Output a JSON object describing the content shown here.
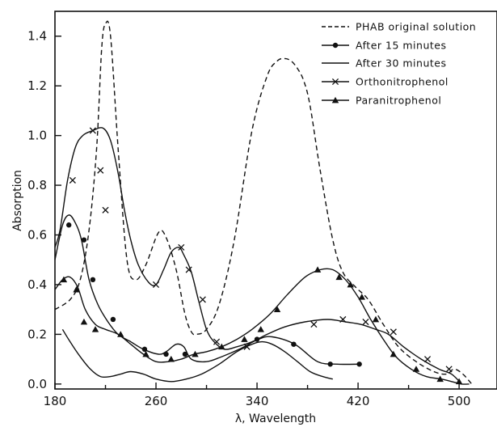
{
  "chart_data": {
    "type": "line",
    "title": "",
    "xlabel": "λ, Wavelength",
    "ylabel": "Absorption",
    "xlim": [
      180,
      530
    ],
    "ylim": [
      -0.02,
      1.5
    ],
    "xticks": [
      180,
      260,
      340,
      420,
      500
    ],
    "yticks": [
      0.0,
      0.2,
      0.4,
      0.6,
      0.8,
      1.0,
      1.2,
      1.4
    ],
    "ytick_labels": [
      "0.0",
      "0.2",
      "0.4",
      "0.6",
      "0.8",
      "1.0",
      "1.2",
      "1.4"
    ],
    "xtick_labels": [
      "180",
      "260",
      "340",
      "420",
      "500"
    ],
    "grid": false,
    "legend_position": "top-right",
    "series": [
      {
        "name": "PHAB original solution",
        "style": "dashed",
        "marker": "none",
        "x": [
          180,
          192,
          200,
          207,
          213,
          217,
          220,
          224,
          230,
          237,
          244,
          252,
          262,
          268,
          276,
          283,
          288,
          292,
          300,
          310,
          322,
          336,
          348,
          356,
          362,
          367,
          372,
          377,
          382,
          390,
          400,
          408,
          418,
          428,
          440,
          452,
          466,
          480,
          490,
          496,
          503,
          510
        ],
        "y": [
          0.3,
          0.34,
          0.42,
          0.62,
          0.95,
          1.35,
          1.45,
          1.4,
          0.95,
          0.5,
          0.42,
          0.48,
          0.61,
          0.59,
          0.46,
          0.28,
          0.21,
          0.2,
          0.22,
          0.32,
          0.58,
          1.02,
          1.24,
          1.3,
          1.31,
          1.3,
          1.27,
          1.22,
          1.12,
          0.86,
          0.58,
          0.45,
          0.39,
          0.34,
          0.24,
          0.15,
          0.09,
          0.05,
          0.04,
          0.06,
          0.04,
          0.0
        ]
      },
      {
        "name": "After 15 minutes",
        "style": "solid",
        "marker": "dot",
        "x": [
          180,
          186,
          191,
          196,
          201,
          207,
          214,
          222,
          230,
          240,
          250,
          262,
          268,
          276,
          282,
          288,
          300,
          312,
          326,
          341,
          352,
          370,
          388,
          404,
          421
        ],
        "y": [
          0.5,
          0.64,
          0.68,
          0.65,
          0.58,
          0.42,
          0.32,
          0.25,
          0.2,
          0.17,
          0.14,
          0.12,
          0.13,
          0.16,
          0.15,
          0.1,
          0.09,
          0.11,
          0.14,
          0.18,
          0.19,
          0.16,
          0.09,
          0.08,
          0.08
        ],
        "markers_x": [
          191,
          203,
          210,
          226,
          251,
          268,
          283,
          340,
          369,
          398,
          421
        ],
        "markers_y": [
          0.64,
          0.58,
          0.42,
          0.26,
          0.14,
          0.12,
          0.12,
          0.18,
          0.16,
          0.08,
          0.08
        ]
      },
      {
        "name": "After 30 minutes",
        "style": "solid",
        "marker": "none",
        "x": [
          186,
          192,
          200,
          208,
          216,
          224,
          232,
          240,
          250,
          260,
          272,
          284,
          296,
          310,
          324,
          336,
          344,
          352,
          362,
          372,
          382,
          392,
          400
        ],
        "y": [
          0.22,
          0.17,
          0.11,
          0.06,
          0.03,
          0.03,
          0.04,
          0.05,
          0.04,
          0.02,
          0.01,
          0.02,
          0.04,
          0.08,
          0.13,
          0.16,
          0.17,
          0.16,
          0.13,
          0.09,
          0.05,
          0.03,
          0.02
        ]
      },
      {
        "name": "Orthonitrophenol",
        "style": "solid",
        "marker": "x",
        "x": [
          180,
          184,
          190,
          196,
          202,
          210,
          218,
          224,
          230,
          235,
          240,
          246,
          254,
          260,
          266,
          272,
          278,
          282,
          288,
          294,
          300,
          306,
          314,
          324,
          336,
          348,
          362,
          378,
          396,
          410,
          422,
          434,
          444,
          456,
          470,
          484,
          494,
          502
        ],
        "y": [
          0.55,
          0.62,
          0.82,
          0.95,
          1.0,
          1.02,
          1.03,
          0.98,
          0.85,
          0.7,
          0.58,
          0.48,
          0.41,
          0.4,
          0.46,
          0.53,
          0.55,
          0.52,
          0.45,
          0.33,
          0.22,
          0.17,
          0.14,
          0.15,
          0.17,
          0.2,
          0.23,
          0.25,
          0.26,
          0.25,
          0.24,
          0.22,
          0.2,
          0.15,
          0.1,
          0.06,
          0.04,
          0.0
        ],
        "markers_x": [
          194,
          210,
          216,
          220,
          260,
          280,
          286,
          297,
          308,
          332,
          385,
          408,
          426,
          448,
          475,
          492
        ],
        "markers_y": [
          0.82,
          1.02,
          0.86,
          0.7,
          0.4,
          0.55,
          0.46,
          0.34,
          0.17,
          0.15,
          0.24,
          0.26,
          0.25,
          0.21,
          0.1,
          0.06
        ]
      },
      {
        "name": "Paranitrophenol",
        "style": "solid",
        "marker": "triangle",
        "x": [
          180,
          186,
          192,
          198,
          204,
          212,
          220,
          230,
          240,
          250,
          260,
          270,
          280,
          290,
          300,
          312,
          324,
          336,
          350,
          364,
          378,
          390,
          400,
          410,
          420,
          430,
          440,
          450,
          462,
          474,
          486,
          494,
          502,
          508
        ],
        "y": [
          0.38,
          0.42,
          0.43,
          0.39,
          0.3,
          0.24,
          0.22,
          0.2,
          0.16,
          0.12,
          0.09,
          0.09,
          0.1,
          0.12,
          0.13,
          0.15,
          0.18,
          0.22,
          0.28,
          0.36,
          0.43,
          0.46,
          0.46,
          0.42,
          0.35,
          0.26,
          0.18,
          0.11,
          0.06,
          0.03,
          0.02,
          0.01,
          0.0,
          0.0
        ],
        "markers_x": [
          187,
          197,
          203,
          212,
          232,
          252,
          272,
          291,
          312,
          330,
          343,
          356,
          388,
          405,
          414,
          423,
          434,
          448,
          466,
          485,
          500
        ],
        "markers_y": [
          0.42,
          0.38,
          0.25,
          0.22,
          0.2,
          0.12,
          0.1,
          0.12,
          0.15,
          0.18,
          0.22,
          0.3,
          0.46,
          0.43,
          0.4,
          0.35,
          0.26,
          0.12,
          0.06,
          0.02,
          0.01
        ]
      }
    ]
  }
}
